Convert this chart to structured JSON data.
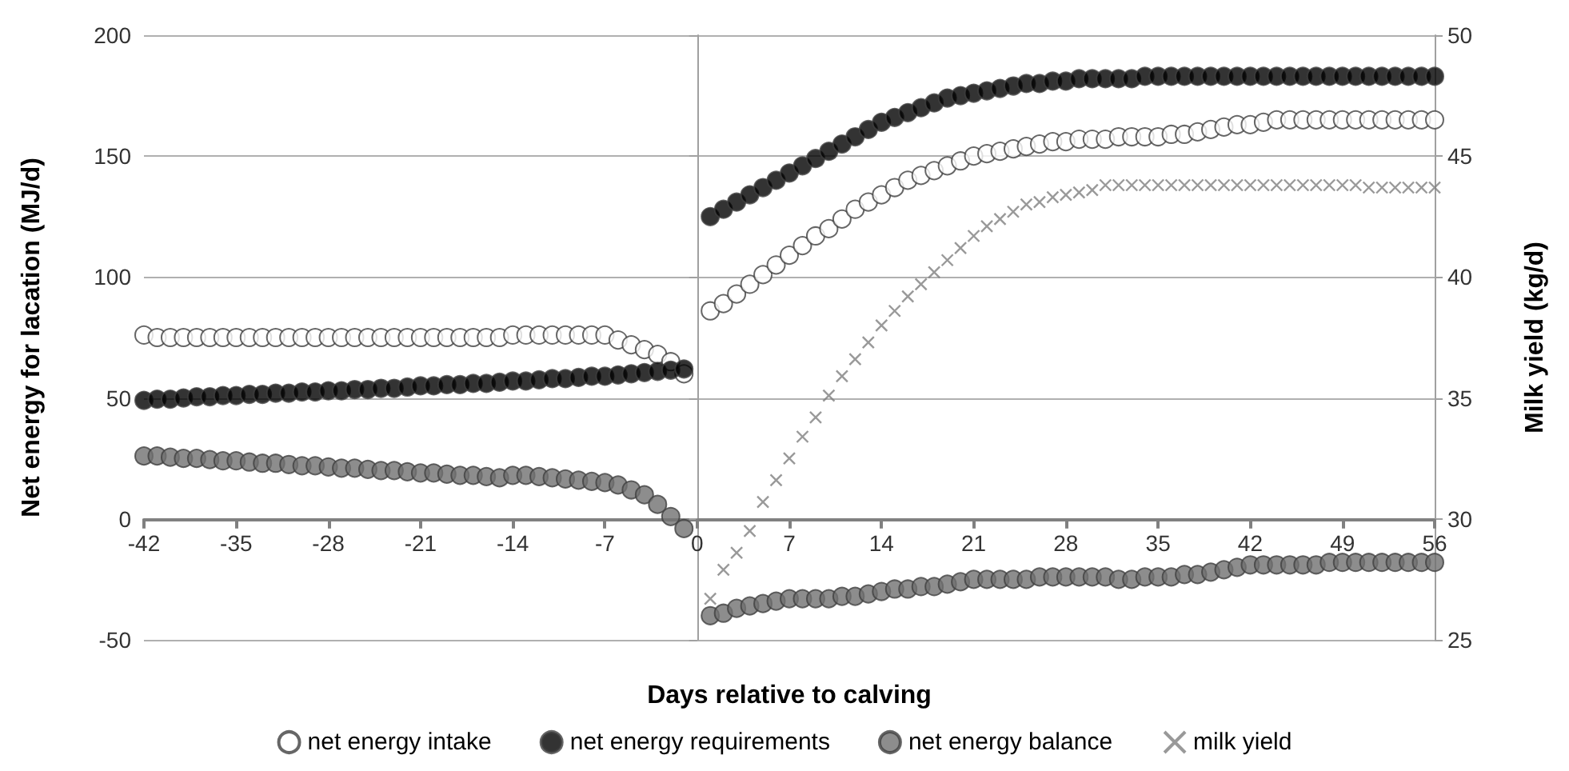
{
  "chart_data": {
    "type": "scatter",
    "xlabel": "Days relative to calving",
    "ylabel": "Net energy for lacation (MJ/d)",
    "y2label": "Milk yield (kg/d)",
    "xlim": [
      -42,
      56
    ],
    "xticks": [
      -42,
      -35,
      -28,
      -21,
      -14,
      -7,
      0,
      7,
      14,
      21,
      28,
      35,
      42,
      49,
      56
    ],
    "ylim": [
      -50,
      200
    ],
    "yticks": [
      -50,
      0,
      50,
      100,
      150,
      200
    ],
    "y2lim": [
      25,
      50
    ],
    "y2ticks": [
      25,
      30,
      35,
      40,
      45,
      50
    ],
    "grid": "y",
    "legend": "bottom",
    "series": [
      {
        "name": "net energy intake",
        "color": "#ffffff",
        "marker": "circle",
        "x": [
          -42,
          -41,
          -40,
          -39,
          -38,
          -37,
          -36,
          -35,
          -34,
          -33,
          -32,
          -31,
          -30,
          -29,
          -28,
          -27,
          -26,
          -25,
          -24,
          -23,
          -22,
          -21,
          -20,
          -19,
          -18,
          -17,
          -16,
          -15,
          -14,
          -13,
          -12,
          -11,
          -10,
          -9,
          -8,
          -7,
          -6,
          -5,
          -4,
          -3,
          -2,
          -1,
          1,
          2,
          3,
          4,
          5,
          6,
          7,
          8,
          9,
          10,
          11,
          12,
          13,
          14,
          15,
          16,
          17,
          18,
          19,
          20,
          21,
          22,
          23,
          24,
          25,
          26,
          27,
          28,
          29,
          30,
          31,
          32,
          33,
          34,
          35,
          36,
          37,
          38,
          39,
          40,
          41,
          42,
          43,
          44,
          45,
          46,
          47,
          48,
          49,
          50,
          51,
          52,
          53,
          54,
          55,
          56
        ],
        "values": [
          76,
          75,
          75,
          75,
          75,
          75,
          75,
          75,
          75,
          75,
          75,
          75,
          75,
          75,
          75,
          75,
          75,
          75,
          75,
          75,
          75,
          75,
          75,
          75,
          75,
          75,
          75,
          75,
          76,
          76,
          76,
          76,
          76,
          76,
          76,
          76,
          74,
          72,
          70,
          68,
          65,
          60,
          86,
          89,
          93,
          97,
          101,
          105,
          109,
          113,
          117,
          120,
          124,
          128,
          131,
          134,
          137,
          140,
          142,
          144,
          146,
          148,
          150,
          151,
          152,
          153,
          154,
          155,
          156,
          156,
          157,
          157,
          157,
          158,
          158,
          158,
          158,
          159,
          159,
          160,
          161,
          162,
          163,
          163,
          164,
          165,
          165,
          165,
          165,
          165,
          165,
          165,
          165,
          165,
          165,
          165,
          165,
          165
        ]
      },
      {
        "name": "net energy requirements",
        "color": "#000000",
        "marker": "circle",
        "x": [
          -42,
          -41,
          -40,
          -39,
          -38,
          -37,
          -36,
          -35,
          -34,
          -33,
          -32,
          -31,
          -30,
          -29,
          -28,
          -27,
          -26,
          -25,
          -24,
          -23,
          -22,
          -21,
          -20,
          -19,
          -18,
          -17,
          -16,
          -15,
          -14,
          -13,
          -12,
          -11,
          -10,
          -9,
          -8,
          -7,
          -6,
          -5,
          -4,
          -3,
          -2,
          -1,
          1,
          2,
          3,
          4,
          5,
          6,
          7,
          8,
          9,
          10,
          11,
          12,
          13,
          14,
          15,
          16,
          17,
          18,
          19,
          20,
          21,
          22,
          23,
          24,
          25,
          26,
          27,
          28,
          29,
          30,
          31,
          32,
          33,
          34,
          35,
          36,
          37,
          38,
          39,
          40,
          41,
          42,
          43,
          44,
          45,
          46,
          47,
          48,
          49,
          50,
          51,
          52,
          53,
          54,
          55,
          56
        ],
        "values": [
          49,
          49.5,
          49.5,
          50,
          50.5,
          50.5,
          51,
          51,
          51.5,
          51.5,
          52,
          52,
          52.5,
          52.5,
          53,
          53,
          53.5,
          53.5,
          54,
          54,
          54.5,
          55,
          55,
          55.5,
          55.5,
          56,
          56,
          56.5,
          57,
          57,
          57.5,
          58,
          58,
          58.5,
          59,
          59,
          59.5,
          60,
          60.5,
          61,
          61.5,
          62,
          125,
          128,
          131,
          134,
          137,
          140,
          143,
          146,
          149,
          152,
          155,
          158,
          161,
          164,
          166,
          168,
          170,
          172,
          174,
          175,
          176,
          177,
          178,
          179,
          180,
          180,
          181,
          181,
          182,
          182,
          182,
          182,
          182,
          183,
          183,
          183,
          183,
          183,
          183,
          183,
          183,
          183,
          183,
          183,
          183,
          183,
          183,
          183,
          183,
          183,
          183,
          183,
          183,
          183,
          183,
          183
        ]
      },
      {
        "name": "net energy balance",
        "color": "#707070",
        "marker": "circle",
        "x": [
          -42,
          -41,
          -40,
          -39,
          -38,
          -37,
          -36,
          -35,
          -34,
          -33,
          -32,
          -31,
          -30,
          -29,
          -28,
          -27,
          -26,
          -25,
          -24,
          -23,
          -22,
          -21,
          -20,
          -19,
          -18,
          -17,
          -16,
          -15,
          -14,
          -13,
          -12,
          -11,
          -10,
          -9,
          -8,
          -7,
          -6,
          -5,
          -4,
          -3,
          -2,
          -1,
          1,
          2,
          3,
          4,
          5,
          6,
          7,
          8,
          9,
          10,
          11,
          12,
          13,
          14,
          15,
          16,
          17,
          18,
          19,
          20,
          21,
          22,
          23,
          24,
          25,
          26,
          27,
          28,
          29,
          30,
          31,
          32,
          33,
          34,
          35,
          36,
          37,
          38,
          39,
          40,
          41,
          42,
          43,
          44,
          45,
          46,
          47,
          48,
          49,
          50,
          51,
          52,
          53,
          54,
          55,
          56
        ],
        "values": [
          26,
          26,
          25.5,
          25,
          25,
          24.5,
          24,
          24,
          23.5,
          23,
          23,
          22.5,
          22,
          22,
          21.5,
          21,
          21,
          20.5,
          20,
          20,
          19.5,
          19,
          19,
          18.5,
          18,
          18,
          17.5,
          17,
          18,
          18,
          17.5,
          17,
          16.5,
          16,
          15.5,
          15,
          14,
          12,
          10,
          6,
          1,
          -4,
          -40,
          -39,
          -37,
          -36,
          -35,
          -34,
          -33,
          -33,
          -33,
          -33,
          -32,
          -32,
          -31,
          -30,
          -29,
          -29,
          -28,
          -28,
          -27,
          -26,
          -25,
          -25,
          -25,
          -25,
          -25,
          -24,
          -24,
          -24,
          -24,
          -24,
          -24,
          -25,
          -25,
          -24,
          -24,
          -24,
          -23,
          -23,
          -22,
          -21,
          -20,
          -19,
          -19,
          -19,
          -19,
          -19,
          -19,
          -18,
          -18,
          -18,
          -18,
          -18,
          -18,
          -18,
          -18,
          -18
        ]
      },
      {
        "name": "milk yield",
        "color": "#808080",
        "marker": "cross",
        "axis": "y2",
        "x": [
          1,
          2,
          3,
          4,
          5,
          6,
          7,
          8,
          9,
          10,
          11,
          12,
          13,
          14,
          15,
          16,
          17,
          18,
          19,
          20,
          21,
          22,
          23,
          24,
          25,
          26,
          27,
          28,
          29,
          30,
          31,
          32,
          33,
          34,
          35,
          36,
          37,
          38,
          39,
          40,
          41,
          42,
          43,
          44,
          45,
          46,
          47,
          48,
          49,
          50,
          51,
          52,
          53,
          54,
          55,
          56
        ],
        "values": [
          26.7,
          27.9,
          28.6,
          29.5,
          30.7,
          31.6,
          32.5,
          33.4,
          34.2,
          35.1,
          35.9,
          36.6,
          37.3,
          38.0,
          38.6,
          39.2,
          39.7,
          40.2,
          40.7,
          41.2,
          41.7,
          42.1,
          42.4,
          42.7,
          43.0,
          43.1,
          43.3,
          43.4,
          43.5,
          43.6,
          43.8,
          43.8,
          43.8,
          43.8,
          43.8,
          43.8,
          43.8,
          43.8,
          43.8,
          43.8,
          43.8,
          43.8,
          43.8,
          43.8,
          43.8,
          43.8,
          43.8,
          43.8,
          43.8,
          43.8,
          43.7,
          43.7,
          43.7,
          43.7,
          43.7,
          43.7
        ]
      }
    ]
  }
}
